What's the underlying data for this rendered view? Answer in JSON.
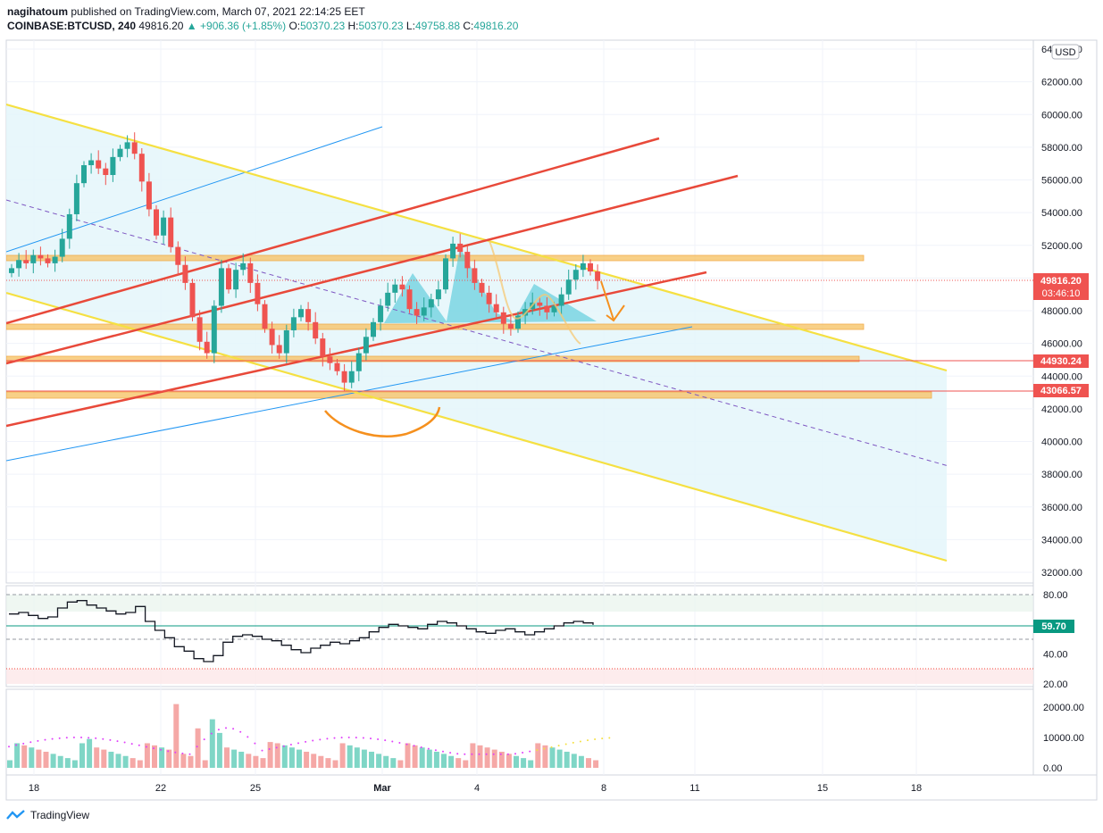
{
  "header": {
    "publisher": "nagihatoum",
    "published_text": "published on TradingView.com, March 07, 2021 22:14:25 EET",
    "symbol": "COINBASE:BTCUSD, 240",
    "last": "49816.20",
    "change": "+906.36 (+1.85%)",
    "o_label": "O:",
    "o_value": "50370.23",
    "h_label": "H:",
    "h_value": "50370.23",
    "l_label": "L:",
    "l_value": "49758.88",
    "c_label": "C:",
    "c_value": "49816.20"
  },
  "currency_badge": "USD",
  "brand": "TradingView",
  "colors": {
    "up": "#26a69a",
    "down": "#ef5350",
    "channel_yellow": "#f5e042",
    "channel_red": "#e8493a",
    "trend_blue": "#2196f3",
    "zone_orange": "#f7c873",
    "channel_fill": "#e4f6fa",
    "rsi_line": "#131722",
    "rsi_ma": "#089981"
  },
  "chart_data": [
    {
      "type": "candlestick",
      "pane": "price",
      "y_ticks": [
        "64000.00",
        "62000.00",
        "60000.00",
        "58000.00",
        "56000.00",
        "54000.00",
        "52000.00",
        "50000.00",
        "48000.00",
        "46000.00",
        "44000.00",
        "42000.00",
        "40000.00",
        "38000.00",
        "36000.00",
        "34000.00",
        "32000.00"
      ],
      "ylim": [
        31000,
        64500
      ],
      "x_ticks": [
        "18",
        "22",
        "25",
        "Mar",
        "4",
        "8",
        "11",
        "15",
        "18"
      ],
      "price_tags": [
        {
          "value": "49816.20",
          "sub": "03:46:10",
          "color": "#ef5350"
        },
        {
          "value": "44930.24",
          "color": "#ef5350"
        },
        {
          "value": "43066.57",
          "color": "#ef5350"
        }
      ],
      "close_series": [
        50600,
        51100,
        50900,
        51400,
        51200,
        50900,
        51300,
        52400,
        53900,
        55800,
        56900,
        57200,
        56700,
        56300,
        57400,
        57900,
        58300,
        57600,
        55900,
        54200,
        52600,
        53700,
        51900,
        50800,
        49700,
        47600,
        46100,
        45400,
        48300,
        50600,
        49300,
        50500,
        50900,
        49700,
        48400,
        46900,
        45900,
        45400,
        46800,
        47600,
        48100,
        47300,
        46300,
        45200,
        44800,
        44300,
        43600,
        44300,
        45400,
        46400,
        47300,
        48300,
        49100,
        49600,
        49300,
        48100,
        47700,
        48200,
        48700,
        49300,
        51200,
        52100,
        51600,
        50600,
        49700,
        49100,
        48400,
        47900,
        47200,
        46900,
        47700,
        48100,
        48500,
        48300,
        47900,
        48300,
        49000,
        49900,
        50500,
        50900,
        50400,
        49816
      ]
    },
    {
      "type": "line",
      "pane": "rsi",
      "y_ticks": [
        "80.00",
        "60.00",
        "40.00",
        "20.00"
      ],
      "ylim": [
        15,
        85
      ],
      "last_label": "59.70",
      "series": [
        {
          "values": [
            67,
            68,
            66,
            64,
            65,
            71,
            75,
            76,
            73,
            71,
            69,
            67,
            68,
            72,
            62,
            56,
            51,
            45,
            42,
            37,
            35,
            39,
            48,
            52,
            53,
            52,
            50,
            49,
            46,
            43,
            41,
            44,
            46,
            48,
            47,
            49,
            51,
            55,
            58,
            60,
            59,
            58,
            57,
            60,
            62,
            61,
            59,
            57,
            55,
            54,
            56,
            57,
            55,
            53,
            55,
            57,
            59,
            61,
            62,
            61,
            59.7
          ]
        }
      ]
    },
    {
      "type": "bar",
      "pane": "volume",
      "y_ticks": [
        "20000.00",
        "10000.00",
        "0.00"
      ],
      "ylim": [
        -800,
        22000
      ]
    }
  ]
}
